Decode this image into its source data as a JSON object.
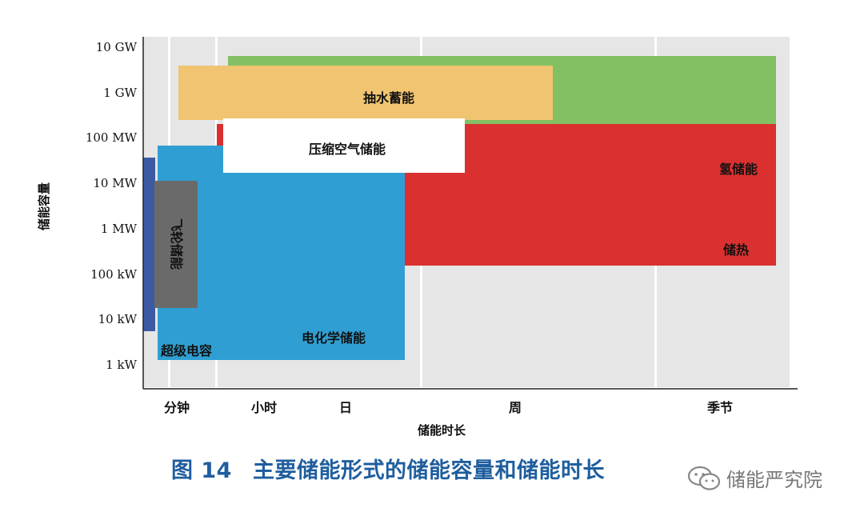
{
  "chart_data": {
    "type": "area",
    "ylabel": "储能容量",
    "xlabel": "储能时长",
    "y_ticks": [
      "1 kW",
      "10 kW",
      "100 kW",
      "1 MW",
      "10 MW",
      "100 MW",
      "1 GW",
      "10 GW"
    ],
    "x_ticks": [
      "分钟",
      "小时",
      "日",
      "周",
      "季节"
    ],
    "y_scale": "log",
    "regions": [
      {
        "label": "氢储能",
        "color": "#83c063",
        "duration": [
          "小时",
          "季节"
        ],
        "power": [
          "10 MW",
          "10 GW"
        ]
      },
      {
        "label": "储热",
        "color": "#da3030",
        "duration": [
          "小时",
          "季节"
        ],
        "power": [
          "100 kW",
          "100 MW"
        ]
      },
      {
        "label": "电化学储能",
        "color": "#2f9fd3",
        "duration": [
          "分钟",
          "日"
        ],
        "power": [
          "1 kW",
          "100 MW"
        ]
      },
      {
        "label": "抽水蓄能",
        "color": "#f0c470",
        "duration": [
          "分钟",
          "周"
        ],
        "power": [
          "100 MW",
          "1 GW"
        ]
      },
      {
        "label": "压缩空气储能",
        "color": "#ffffff",
        "duration": [
          "小时",
          "日"
        ],
        "power": [
          "10 MW",
          "100 MW"
        ]
      },
      {
        "label": "飞轮储能",
        "color": "#6a6a6a",
        "duration": [
          "分钟",
          "小时"
        ],
        "power": [
          "10 kW",
          "10 MW"
        ]
      },
      {
        "label": "超级电容",
        "color": "#3b5aa3",
        "duration": [
          "分钟",
          "分钟"
        ],
        "power": [
          "10 kW",
          "10 MW"
        ]
      }
    ],
    "grid": true
  },
  "caption": {
    "figure_number": "图 14",
    "title": "主要储能形式的储能容量和储能时长"
  },
  "watermark": {
    "icon": "wechat-icon",
    "text": "储能严究院"
  }
}
